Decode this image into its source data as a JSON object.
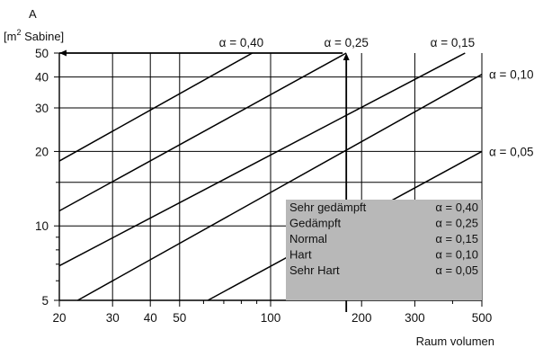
{
  "chart_data": {
    "type": "line",
    "y_label_line1": "A",
    "y_label_line2_prefix": "[m",
    "y_label_line2_sup": "2",
    "y_label_line2_suffix": " Sabine]",
    "xlabel": "Raum volumen",
    "x_scale": "log",
    "y_scale": "log",
    "xlim": [
      20,
      500
    ],
    "ylim": [
      5,
      50
    ],
    "x_ticks": [
      {
        "value": 20,
        "label": "20"
      },
      {
        "value": 30,
        "label": "30"
      },
      {
        "value": 40,
        "label": "40"
      },
      {
        "value": 50,
        "label": "50"
      },
      {
        "value": 100,
        "label": "100"
      },
      {
        "value": 200,
        "label": "200"
      },
      {
        "value": 300,
        "label": "300"
      },
      {
        "value": 500,
        "label": "500"
      }
    ],
    "x_minor_ticks": [
      60,
      70,
      80,
      90,
      400
    ],
    "x_major_gridlines": [
      30,
      40,
      50,
      100,
      200,
      300
    ],
    "y_ticks": [
      {
        "value": 5,
        "label": "5"
      },
      {
        "value": 10,
        "label": "10"
      },
      {
        "value": 20,
        "label": "20"
      },
      {
        "value": 30,
        "label": "30"
      },
      {
        "value": 40,
        "label": "40"
      },
      {
        "value": 50,
        "label": "50"
      }
    ],
    "y_minor_ticks": [
      6,
      7,
      8,
      9,
      15
    ],
    "y_gridlines": [
      10,
      15,
      20,
      30,
      40
    ],
    "grid": true,
    "series": [
      {
        "name": "α = 0,40",
        "alpha": 0.4,
        "x": [
          20,
          87
        ],
        "y": [
          18.3,
          50
        ]
      },
      {
        "name": "α = 0,25",
        "alpha": 0.25,
        "x": [
          20,
          178
        ],
        "y": [
          11.5,
          50
        ]
      },
      {
        "name": "α = 0,15",
        "alpha": 0.15,
        "x": [
          20,
          440
        ],
        "y": [
          6.9,
          50
        ]
      },
      {
        "name": "α = 0,10",
        "alpha": 0.1,
        "x": [
          23,
          500
        ],
        "y": [
          5,
          41
        ]
      },
      {
        "name": "α = 0,05",
        "alpha": 0.05,
        "x": [
          62,
          500
        ],
        "y": [
          5,
          20
        ]
      }
    ],
    "top_labels": [
      {
        "text": "α = 0,40",
        "x": 80
      },
      {
        "text": "α = 0,25",
        "x": 178
      },
      {
        "text": "α = 0,15",
        "x": 400
      }
    ],
    "right_labels": [
      {
        "text": "α = 0,10",
        "y": 41
      },
      {
        "text": "α = 0,05",
        "y": 20
      }
    ],
    "example": {
      "x": 178,
      "y": 50
    },
    "legend": {
      "background": "#b8b8b8",
      "placement": "bottom-right",
      "rows": [
        {
          "name": "Sehr gedämpft",
          "value": "α = 0,40"
        },
        {
          "name": "Gedämpft",
          "value": "α = 0,25"
        },
        {
          "name": "Normal",
          "value": "α = 0,15"
        },
        {
          "name": "Hart",
          "value": "α = 0,10"
        },
        {
          "name": "Sehr Hart",
          "value": "α = 0,05"
        }
      ]
    },
    "colors": {
      "line": "#000000",
      "grid": "#000000",
      "legend_bg": "#b8b8b8"
    }
  }
}
